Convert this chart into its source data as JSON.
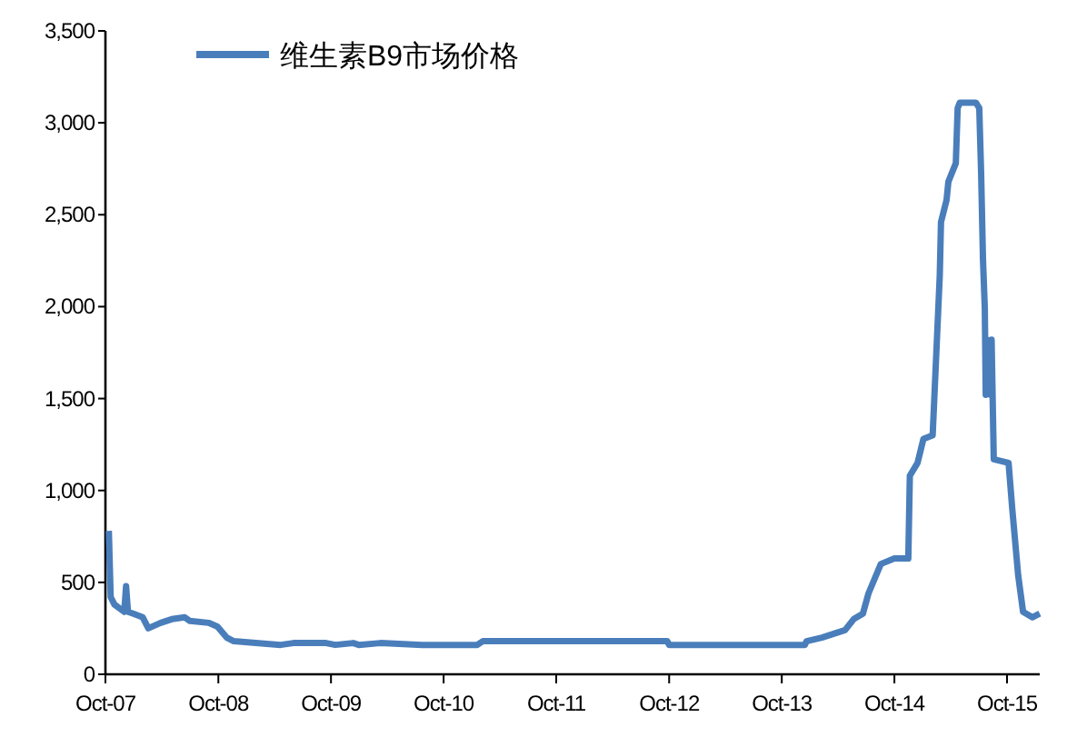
{
  "chart_data": {
    "type": "line",
    "legend": "top left",
    "grid": false,
    "line_style": "solid",
    "xlim": [
      "2007-10-01",
      "2016-01-15"
    ],
    "xticks": [
      {
        "value": "2007-10-01",
        "label": "Oct-07"
      },
      {
        "value": "2008-10-01",
        "label": "Oct-08"
      },
      {
        "value": "2009-10-01",
        "label": "Oct-09"
      },
      {
        "value": "2010-10-01",
        "label": "Oct-10"
      },
      {
        "value": "2011-10-01",
        "label": "Oct-11"
      },
      {
        "value": "2012-10-01",
        "label": "Oct-12"
      },
      {
        "value": "2013-10-01",
        "label": "Oct-13"
      },
      {
        "value": "2014-10-01",
        "label": "Oct-14"
      },
      {
        "value": "2015-10-01",
        "label": "Oct-15"
      }
    ],
    "ylim": [
      0,
      3500
    ],
    "yticks": [
      0,
      {
        "value": 500,
        "label": "500"
      },
      {
        "value": 1000,
        "label": "1,000"
      },
      {
        "value": 1500,
        "label": "1,500"
      },
      {
        "value": 2000,
        "label": "2,000"
      },
      {
        "value": 2500,
        "label": "2,500"
      },
      {
        "value": 3000,
        "label": "3,000"
      },
      {
        "value": 3500,
        "label": "3,500"
      }
    ],
    "series": [
      {
        "name": "维生素B9市场价格",
        "color": "#4a7ebb",
        "x": [
          "2007-10-12",
          "2007-10-18",
          "2007-10-30",
          "2007-12-01",
          "2007-12-07",
          "2007-12-13",
          "2007-12-30",
          "2008-01-30",
          "2008-02-17",
          "2008-03-28",
          "2008-05-03",
          "2008-06-14",
          "2008-07-01",
          "2008-08-30",
          "2008-09-28",
          "2008-10-28",
          "2008-11-20",
          "2009-04-21",
          "2009-06-01",
          "2009-09-15",
          "2009-10-15",
          "2009-12-12",
          "2009-12-30",
          "2010-03-10",
          "2010-07-24",
          "2011-01-18",
          "2011-02-05",
          "2011-12-27",
          "2012-01-10",
          "2012-09-25",
          "2012-10-01",
          "2013-12-15",
          "2013-12-20",
          "2014-02-08",
          "2014-04-24",
          "2014-05-22",
          "2014-06-21",
          "2014-07-09",
          "2014-08-18",
          "2014-10-01",
          "2014-11-15",
          "2014-11-20",
          "2014-12-15",
          "2015-01-03",
          "2015-02-02",
          "2015-02-25",
          "2015-03-01",
          "2015-03-19",
          "2015-03-25",
          "2015-04-18",
          "2015-04-24",
          "2015-05-01",
          "2015-06-22",
          "2015-07-03",
          "2015-07-09",
          "2015-07-15",
          "2015-07-21",
          "2015-07-24",
          "2015-07-27",
          "2015-08-09",
          "2015-08-12",
          "2015-08-19",
          "2015-10-06",
          "2015-10-18",
          "2015-11-06",
          "2015-11-22",
          "2015-12-22",
          "2016-01-15"
        ],
        "values": [
          780,
          420,
          380,
          340,
          480,
          340,
          330,
          310,
          250,
          280,
          300,
          310,
          290,
          280,
          260,
          200,
          180,
          160,
          170,
          170,
          160,
          170,
          160,
          170,
          160,
          160,
          180,
          180,
          180,
          180,
          160,
          160,
          180,
          200,
          240,
          300,
          330,
          440,
          600,
          630,
          630,
          1080,
          1150,
          1280,
          1300,
          2170,
          2460,
          2580,
          2680,
          2780,
          3080,
          3110,
          3110,
          3080,
          2730,
          2260,
          1990,
          1520,
          1820,
          1520,
          1820,
          1170,
          1150,
          900,
          540,
          340,
          310,
          330
        ]
      }
    ]
  }
}
